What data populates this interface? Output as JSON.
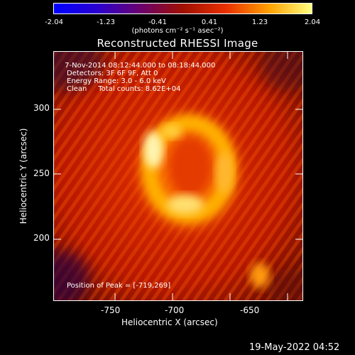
{
  "colorbar": {
    "ticks": [
      "-2.04",
      "-1.23",
      "-0.41",
      "0.41",
      "1.23",
      "2.04"
    ],
    "units": "(photons cm⁻² s⁻¹ asec⁻²)",
    "colors": [
      "#0000ff",
      "#2a00d0",
      "#6a0070",
      "#a01000",
      "#e83000",
      "#ffa000",
      "#ffff80"
    ]
  },
  "plot": {
    "title": "Reconstructed RHESSI Image",
    "info_lines": [
      " 7-Nov-2014 08:12:44.000 to 08:18:44.000",
      "Detectors: 3F 6F 9F, Att 0",
      "Energy Range: 3.0 - 6.0 keV",
      "Clean     Total counts: 8.62E+04"
    ],
    "peak_text": "Position of Peak = [-719,269]",
    "x_axis_label": "Heliocentric X (arcsec)",
    "y_axis_label": "Heliocentric Y (arcsec)",
    "x_ticks": [
      "-750",
      "-700",
      "-650"
    ],
    "y_ticks": [
      "300",
      "250",
      "200"
    ]
  },
  "footer": {
    "date": "19-May-2022 04:52"
  }
}
